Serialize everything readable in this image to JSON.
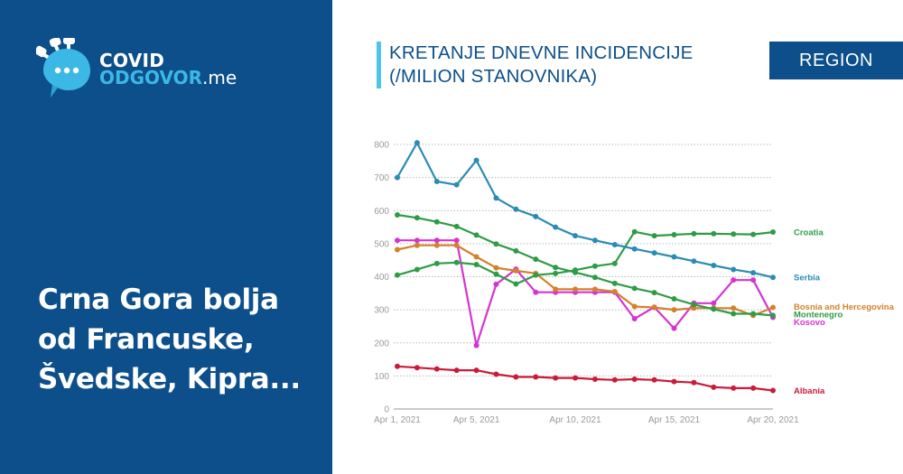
{
  "brand": {
    "line1": "COVID",
    "line2_brand": "ODGOVOR",
    "line2_tld": ".me"
  },
  "headline": {
    "lines": [
      "Crna Gora bolja",
      "od Francuske,",
      "Švedske, Kipra..."
    ]
  },
  "chart_header": {
    "title_line1": "KRETANJE DNEVNE INCIDENCIJE",
    "title_line2": "(/MILION STANOVNIKA)",
    "region_button": "REGION"
  },
  "colors": {
    "panel_bg": "#0d4f8a",
    "accent_light": "#4fc3ea",
    "Serbia": "#2a8cb4",
    "Croatia": "#2e9c45",
    "Montenegro": "#2e9c45",
    "Bosnia and Hercegovina": "#d4812c",
    "Kosovo": "#d534d3",
    "Albania": "#cc1a3a"
  },
  "chart_data": {
    "type": "line",
    "title": "KRETANJE DNEVNE INCIDENCIJE (/MILION STANOVNIKA)",
    "xlabel": "",
    "ylabel": "",
    "ylim": [
      0,
      800
    ],
    "yticks": [
      0,
      100,
      200,
      300,
      400,
      500,
      600,
      700,
      800
    ],
    "grid": true,
    "legend_position": "right (inline end labels)",
    "x_tick_labels": [
      "Apr 1, 2021",
      "Apr 5, 2021",
      "Apr 10, 2021",
      "Apr 15, 2021",
      "Apr 20, 2021"
    ],
    "x_tick_index": [
      0,
      4,
      9,
      14,
      19
    ],
    "x": [
      "Apr 1",
      "Apr 2",
      "Apr 3",
      "Apr 4",
      "Apr 5",
      "Apr 6",
      "Apr 7",
      "Apr 8",
      "Apr 9",
      "Apr 10",
      "Apr 11",
      "Apr 12",
      "Apr 13",
      "Apr 14",
      "Apr 15",
      "Apr 16",
      "Apr 17",
      "Apr 18",
      "Apr 19",
      "Apr 20"
    ],
    "series": [
      {
        "name": "Serbia",
        "values": [
          700,
          805,
          688,
          678,
          752,
          638,
          604,
          582,
          550,
          524,
          510,
          497,
          484,
          472,
          460,
          447,
          434,
          422,
          412,
          398
        ]
      },
      {
        "name": "Croatia",
        "values": [
          405,
          422,
          440,
          443,
          437,
          408,
          378,
          405,
          410,
          420,
          432,
          440,
          536,
          524,
          527,
          530,
          530,
          529,
          528,
          535
        ]
      },
      {
        "name": "Montenegro",
        "values": [
          587,
          578,
          566,
          552,
          526,
          499,
          478,
          453,
          428,
          413,
          398,
          380,
          365,
          352,
          333,
          316,
          302,
          288,
          288,
          283
        ]
      },
      {
        "name": "Bosnia and Hercegovina",
        "values": [
          482,
          495,
          495,
          495,
          460,
          427,
          418,
          410,
          362,
          362,
          362,
          355,
          310,
          307,
          300,
          305,
          305,
          305,
          283,
          307
        ]
      },
      {
        "name": "Kosovo",
        "values": [
          510,
          510,
          510,
          510,
          192,
          377,
          423,
          353,
          353,
          353,
          353,
          353,
          273,
          308,
          244,
          320,
          320,
          390,
          390,
          277
        ]
      },
      {
        "name": "Albania",
        "values": [
          129,
          125,
          121,
          117,
          117,
          105,
          97,
          97,
          94,
          94,
          90,
          88,
          90,
          88,
          83,
          80,
          66,
          63,
          63,
          56
        ]
      }
    ],
    "end_labels": [
      {
        "name": "Croatia",
        "y_value": 535
      },
      {
        "name": "Serbia",
        "y_value": 398
      },
      {
        "name": "Bosnia and Hercegovina",
        "y_value": 310
      },
      {
        "name": "Montenegro",
        "y_value": 287
      },
      {
        "name": "Kosovo",
        "y_value": 264
      },
      {
        "name": "Albania",
        "y_value": 56
      }
    ]
  }
}
